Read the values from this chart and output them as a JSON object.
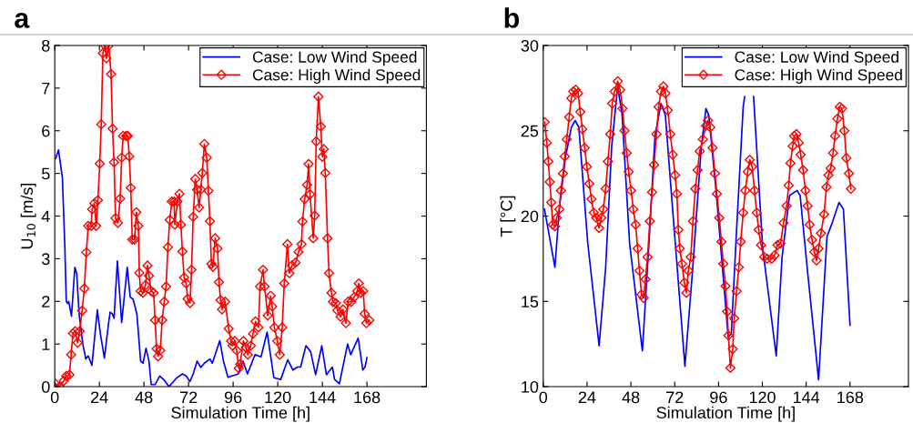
{
  "chart_data": [
    {
      "type": "line",
      "title": "a",
      "xlabel": "Simulation Time [h]",
      "ylabel": "U$_{10}$ [m/s]",
      "xlim": [
        0,
        200
      ],
      "xticks": [
        0,
        24,
        48,
        72,
        96,
        120,
        144,
        168
      ],
      "ylim": [
        0,
        8
      ],
      "yticks": [
        0,
        1,
        2,
        3,
        4,
        5,
        6,
        7,
        8
      ],
      "grid": false,
      "legend": "top right",
      "series": [
        {
          "name": "Case: Low Wind Speed",
          "color": "#0000ff",
          "marker": "none",
          "x": [
            0.5,
            2,
            4.1,
            5.4,
            6.2,
            6.9,
            7.5,
            9,
            10.8,
            11.8,
            13.1,
            15.1,
            16.7,
            18,
            20,
            22.9,
            24.5,
            26.7,
            29,
            29.8,
            31.1,
            31.9,
            33.7,
            36,
            39,
            40.6,
            42.2,
            44.2,
            46.2,
            47.5,
            49.1,
            50.7,
            51.9,
            54,
            56.5,
            59,
            61.4,
            65.5,
            68.7,
            70.7,
            72.8,
            74.5,
            76.6,
            78.6,
            80.5,
            83.5,
            84.8,
            88.8,
            90.8,
            93.2,
            98.8,
            101.3,
            103.7,
            107.8,
            111,
            114.3,
            117.9,
            121.6,
            125.4,
            128.2,
            130.6,
            132.3,
            135.2,
            137.7,
            140.4,
            143.7,
            146.2,
            149.4,
            150.6,
            153.2,
            157.6,
            159.3,
            163.3,
            165.8,
            167,
            168
          ],
          "values": [
            5.35,
            5.55,
            4.9,
            3.3,
            2.0,
            1.95,
            2.0,
            1.65,
            2.8,
            2.65,
            1.7,
            1.0,
            0.65,
            0.72,
            0.5,
            1.8,
            1.25,
            0.67,
            1.5,
            1.75,
            1.7,
            1.6,
            2.95,
            1.5,
            2.8,
            2.1,
            2.05,
            1.7,
            0.6,
            0.55,
            0.9,
            0.6,
            0.05,
            0.05,
            0.25,
            0.15,
            0.0,
            0.2,
            0.3,
            0.25,
            0.12,
            0.3,
            0.6,
            0.45,
            0.55,
            0.65,
            0.55,
            1.08,
            0.6,
            0.22,
            0.3,
            0.6,
            0.3,
            0.75,
            0.7,
            1.28,
            0.21,
            0.17,
            0.63,
            0.39,
            0.46,
            0.46,
            0.96,
            0.82,
            0.28,
            0.96,
            0.28,
            0.46,
            0.17,
            0.07,
            1.0,
            0.75,
            1.14,
            0.39,
            0.46,
            0.68
          ]
        },
        {
          "name": "Case: High Wind Speed",
          "color": "#ff0000",
          "marker": "diamond",
          "x": [
            0.3,
            2.5,
            4.9,
            6.2,
            7.9,
            8.8,
            9.8,
            11,
            12.3,
            13.4,
            14.7,
            15.9,
            17,
            18,
            19.6,
            20.1,
            21.3,
            22.3,
            23.2,
            24.2,
            25,
            25.9,
            27,
            27.8,
            29,
            30.3,
            31.1,
            31.9,
            32.7,
            34,
            35.2,
            36,
            36.8,
            38.5,
            39.3,
            40.1,
            40.9,
            41.7,
            42.9,
            43.9,
            45,
            45.5,
            46.2,
            47.5,
            48.8,
            49.9,
            50.7,
            51.9,
            53.2,
            54,
            54.8,
            55.6,
            56.8,
            57.8,
            58.9,
            59.9,
            60.9,
            61.9,
            63,
            64.2,
            64.6,
            66,
            67.1,
            67.9,
            68.7,
            69.6,
            70.7,
            71.5,
            72.8,
            73.6,
            74.5,
            75.6,
            76.6,
            77.7,
            78.6,
            79.4,
            80.5,
            81.8,
            82.7,
            83.5,
            84.3,
            85.1,
            86.3,
            87.6,
            88.4,
            89.2,
            90,
            91.7,
            93.6,
            94.9,
            95.7,
            96.9,
            97.9,
            99,
            99.8,
            101.5,
            102.8,
            103.9,
            105.5,
            106.7,
            108,
            109.6,
            110.5,
            112.1,
            112.9,
            114.6,
            116.2,
            117,
            118.2,
            119.8,
            121.1,
            122.4,
            123.5,
            125.2,
            126.3,
            127.6,
            129.6,
            131.2,
            132.8,
            133.3,
            134.5,
            135.8,
            136.6,
            137.4,
            139.1,
            139.9,
            140.7,
            141.9,
            143.2,
            144,
            144.8,
            145.6,
            146.8,
            147.6,
            148.9,
            149.7,
            151.3,
            152.1,
            153.8,
            155.1,
            156.7,
            157.9,
            159.5,
            161.1,
            162.8,
            163.6,
            164.7,
            166,
            166.8,
            167.7,
            169.3
          ],
          "values": [
            0.07,
            0,
            0.14,
            0.25,
            0.28,
            0.75,
            1.25,
            1.3,
            1.03,
            1.3,
            1.78,
            2.3,
            3.15,
            3.77,
            3.77,
            4.16,
            4.3,
            3.77,
            4.37,
            5.23,
            6.15,
            7.82,
            8.0,
            7.7,
            8.0,
            7.33,
            6.05,
            5.26,
            3.95,
            3.84,
            4.41,
            5.37,
            5.88,
            5.88,
            5.88,
            5.4,
            4.66,
            3.45,
            3.45,
            4.09,
            3.77,
            2.67,
            2.24,
            2.2,
            2.38,
            2.84,
            2.6,
            2.24,
            2.2,
            1.56,
            0.89,
            0.71,
            0.85,
            1.56,
            1.99,
            2.35,
            3.27,
            3.91,
            4.34,
            4.34,
            3.8,
            4.34,
            4.52,
            3.8,
            3.17,
            2.56,
            2.42,
            2.06,
            1.96,
            2.74,
            3.98,
            4.87,
            4.62,
            4.2,
            4.62,
            5.01,
            5.69,
            5.37,
            4.59,
            3.88,
            2.88,
            2.81,
            3.48,
            3.24,
            2.45,
            2.03,
            1.81,
            1.99,
            1.36,
            1.07,
            0.96,
            1.07,
            0.85,
            0.43,
            0.53,
            1.07,
            0.92,
            0.75,
            0.96,
            1.24,
            1.53,
            1.39,
            2.35,
            2.74,
            2.35,
            1.67,
            2.13,
            1.88,
            1.39,
            1.07,
            0.75,
            1.39,
            2.42,
            3.34,
            2.66,
            2.84,
            2.91,
            3.16,
            3.34,
            3.87,
            4.4,
            4.73,
            5.22,
            4.51,
            3.48,
            4.01,
            5.75,
            6.8,
            6.1,
            5.39,
            5.57,
            5.01,
            3.48,
            2.66,
            2.2,
            1.99,
            1.96,
            1.79,
            1.64,
            1.81,
            1.49,
            1.99,
            1.99,
            2.1,
            2.24,
            2.42,
            2.2,
            2.24,
            1.71,
            1.49,
            1.56
          ]
        }
      ]
    },
    {
      "type": "line",
      "title": "b",
      "xlabel": "Simulation Time [h]",
      "ylabel": "T [°C]",
      "xlim": [
        0,
        200
      ],
      "xticks": [
        0,
        24,
        48,
        72,
        96,
        120,
        144,
        168
      ],
      "ylim": [
        10,
        30
      ],
      "yticks": [
        10,
        15,
        20,
        25,
        30
      ],
      "grid": false,
      "legend": "top right",
      "series": [
        {
          "name": "Case: Low Wind Speed",
          "color": "#0000ff",
          "marker": "none",
          "x": [
            0.7,
            6.4,
            8.8,
            12.1,
            15.4,
            17.5,
            19.5,
            24.4,
            30.6,
            34.2,
            37.5,
            40.8,
            43.2,
            47.3,
            54.3,
            57.9,
            61.2,
            64.5,
            66.9,
            70.2,
            77.6,
            81.7,
            86.6,
            89.1,
            90.7,
            94.8,
            101.3,
            103,
            105.5,
            109.5,
            110.3,
            112.7,
            115.2,
            120.2,
            127.6,
            130.8,
            134.9,
            139,
            140.7,
            144.8,
            150.8,
            155.4,
            157.9,
            162,
            164.4,
            168
          ],
          "values": [
            20.4,
            17.0,
            20.4,
            23.4,
            25.2,
            25.6,
            25.2,
            18.4,
            12.4,
            17.0,
            24.1,
            27.6,
            25.9,
            18.4,
            12.1,
            18.4,
            24.7,
            26.6,
            25.9,
            21.3,
            11.2,
            16.7,
            24.1,
            26.3,
            25.9,
            21.3,
            12.9,
            13.1,
            18.4,
            26.4,
            27.0,
            null,
            27.0,
            18.1,
            11.8,
            17.6,
            21.2,
            21.5,
            21.2,
            16.7,
            10.4,
            18.8,
            19.5,
            20.8,
            20.4,
            13.6
          ]
        },
        {
          "name": "Case: High Wind Speed",
          "color": "#ff0000",
          "marker": "diamond",
          "x": [
            0.8,
            2,
            2.8,
            3.6,
            4.4,
            5.2,
            6.4,
            7.4,
            8.8,
            9.7,
            10.8,
            11.8,
            12.9,
            14.2,
            15.4,
            16.5,
            17.8,
            19.1,
            20.3,
            21.4,
            22.7,
            23.9,
            25.2,
            26.4,
            27.7,
            29,
            30.6,
            31.8,
            32.9,
            34.2,
            35.4,
            36.7,
            37.8,
            39.1,
            40.8,
            42.1,
            43.4,
            44.5,
            45.7,
            46.8,
            48.1,
            49.3,
            50.6,
            51.7,
            52.7,
            53.8,
            55,
            56,
            57.1,
            58.4,
            59.6,
            60.7,
            62,
            63.2,
            64.5,
            65.8,
            66.9,
            68.2,
            69.6,
            70.9,
            72.2,
            73.2,
            74.0,
            74.8,
            76,
            77.3,
            78.4,
            79.5,
            80.8,
            82,
            83.3,
            84.5,
            85.7,
            87.4,
            89.1,
            90.2,
            91.5,
            92.7,
            94,
            95.1,
            96.4,
            97.6,
            98.6,
            99.8,
            100.7,
            101.4,
            102.5,
            103.8,
            104.6,
            105.9,
            107.1,
            108.2,
            109.5,
            110.7,
            112,
            113.1,
            114.4,
            115.7,
            116.9,
            118,
            119.3,
            121,
            122.6,
            125.1,
            126.7,
            128.3,
            130,
            131.6,
            133.3,
            134.4,
            135.4,
            136.6,
            137.4,
            138.7,
            139.9,
            141,
            142.3,
            143.6,
            144.8,
            145.9,
            147.2,
            148.5,
            149.7,
            150.8,
            152.1,
            153.8,
            155.1,
            156.2,
            157.4,
            158.7,
            159.8,
            161.1,
            162.4,
            163.6,
            164.9,
            166,
            167.4,
            168.5
          ],
          "values": [
            25.5,
            24.3,
            23.2,
            22.0,
            20.8,
            19.5,
            19.4,
            19.9,
            20.4,
            21.5,
            22.5,
            23.5,
            24.5,
            25.8,
            26.9,
            27.3,
            27.4,
            27.2,
            26.1,
            25.1,
            24.0,
            22.9,
            21.9,
            21.0,
            20.2,
            19.9,
            19.3,
            19.9,
            20.4,
            21.6,
            23.2,
            24.8,
            26.6,
            27.3,
            27.9,
            27.4,
            26.3,
            25.0,
            23.7,
            22.6,
            21.5,
            20.4,
            19.5,
            18.1,
            16.8,
            15.4,
            15.2,
            16.3,
            17.6,
            19.7,
            21.4,
            23.0,
            24.8,
            26.4,
            27.3,
            27.6,
            27.2,
            26.2,
            24.8,
            23.6,
            22.4,
            21.3,
            19.2,
            18.1,
            17.2,
            16.1,
            15.5,
            16.8,
            17.6,
            19.7,
            21.6,
            22.7,
            23.8,
            24.5,
            25.3,
            25.6,
            25.2,
            24.0,
            22.5,
            21.3,
            19.9,
            18.5,
            17.2,
            15.9,
            14.4,
            13.0,
            11.1,
            12.2,
            14.0,
            15.6,
            17.0,
            18.5,
            20.2,
            21.5,
            22.6,
            23.3,
            22.9,
            21.5,
            20.2,
            19.2,
            18.3,
            17.6,
            17.5,
            17.5,
            17.7,
            18.3,
            18.4,
            19.6,
            20.6,
            21.8,
            23.1,
            24.1,
            24.7,
            24.8,
            24.3,
            23.6,
            22.7,
            21.5,
            20.6,
            19.5,
            18.6,
            17.9,
            17.4,
            18.1,
            19.0,
            20.1,
            21.7,
            22.4,
            22.8,
            23.7,
            24.7,
            25.7,
            26.4,
            26.3,
            25.0,
            23.4,
            22.5,
            21.6
          ]
        }
      ]
    }
  ]
}
